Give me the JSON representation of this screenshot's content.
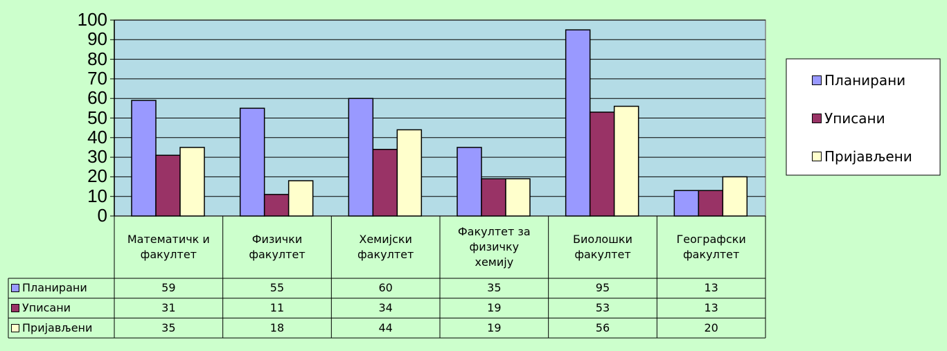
{
  "chart_data": {
    "type": "bar",
    "categories": [
      "Математичк и факултет",
      "Физички факултет",
      "Хемијски факултет",
      "Факултет за физичку хемију",
      "Биолошки факултет",
      "Географски факултет"
    ],
    "series": [
      {
        "name": "Планирани",
        "color": "#9999ff",
        "values": [
          59,
          55,
          60,
          35,
          95,
          13
        ]
      },
      {
        "name": "Уписани",
        "color": "#993366",
        "values": [
          31,
          11,
          34,
          19,
          53,
          13
        ]
      },
      {
        "name": "Пријављени",
        "color": "#ffffcc",
        "values": [
          35,
          18,
          44,
          19,
          56,
          20
        ]
      }
    ],
    "ylim": [
      0,
      100
    ],
    "yticks": [
      0,
      10,
      20,
      30,
      40,
      50,
      60,
      70,
      80,
      90,
      100
    ],
    "grid": true,
    "legend": "right",
    "plot_background": "#b4dce6",
    "data_table": true
  }
}
